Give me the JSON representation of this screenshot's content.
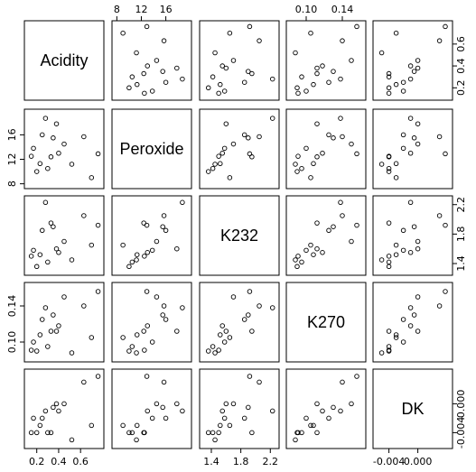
{
  "chart_data": {
    "type": "scatter",
    "subtype": "pairs-matrix",
    "title": "",
    "variables": [
      "Acidity",
      "Peroxide",
      "K232",
      "K270",
      "DK"
    ],
    "ranges": {
      "Acidity": [
        0.12,
        0.78
      ],
      "Peroxide": [
        7.8,
        19.6
      ],
      "K232": [
        1.29,
        2.27
      ],
      "K270": [
        0.082,
        0.162
      ],
      "DK": [
        -0.0057,
        0.0043
      ]
    },
    "ticks": {
      "Acidity": [
        0.2,
        0.4,
        0.6
      ],
      "Peroxide": [
        8,
        12,
        16
      ],
      "K232": [
        1.4,
        1.8,
        2.2
      ],
      "K270": [
        0.1,
        0.14
      ],
      "DK": [
        -0.004,
        0.0
      ]
    },
    "tick_labels": {
      "Acidity": [
        "0.2",
        "0.4",
        "0.6"
      ],
      "Peroxide": [
        "8",
        "12",
        "16"
      ],
      "K232": [
        "1.4",
        "1.8",
        "2.2"
      ],
      "K270": [
        "0.10",
        "0.14"
      ],
      "DK": [
        "-0.004",
        "0.000"
      ]
    },
    "axis_positions": {
      "top": [
        "Peroxide",
        "K270"
      ],
      "right": [
        "Acidity",
        "K232",
        "DK"
      ],
      "bottom": [
        "Acidity",
        "K232",
        "DK"
      ],
      "left": [
        "Peroxide",
        "K270"
      ]
    },
    "observations": [
      {
        "Acidity": 0.15,
        "Peroxide": 12.5,
        "K232": 1.5,
        "K270": 0.091,
        "DK": -0.004
      },
      {
        "Acidity": 0.17,
        "Peroxide": 13.8,
        "K232": 1.58,
        "K270": 0.1,
        "DK": -0.002
      },
      {
        "Acidity": 0.2,
        "Peroxide": 10.0,
        "K232": 1.36,
        "K270": 0.09,
        "DK": -0.004
      },
      {
        "Acidity": 0.23,
        "Peroxide": 11.3,
        "K232": 1.52,
        "K270": 0.108,
        "DK": -0.003
      },
      {
        "Acidity": 0.25,
        "Peroxide": 16.0,
        "K232": 1.85,
        "K270": 0.125,
        "DK": -0.002
      },
      {
        "Acidity": 0.28,
        "Peroxide": 18.7,
        "K232": 2.23,
        "K270": 0.138,
        "DK": -0.001
      },
      {
        "Acidity": 0.3,
        "Peroxide": 10.5,
        "K232": 1.42,
        "K270": 0.095,
        "DK": -0.004
      },
      {
        "Acidity": 0.33,
        "Peroxide": 12.4,
        "K232": 1.95,
        "K270": 0.112,
        "DK": -0.004
      },
      {
        "Acidity": 0.35,
        "Peroxide": 15.5,
        "K232": 1.9,
        "K270": 0.13,
        "DK": -0.0005
      },
      {
        "Acidity": 0.38,
        "Peroxide": 17.8,
        "K232": 1.6,
        "K270": 0.112,
        "DK": 0.0
      },
      {
        "Acidity": 0.4,
        "Peroxide": 13.0,
        "K232": 1.55,
        "K270": 0.118,
        "DK": -0.001
      },
      {
        "Acidity": 0.45,
        "Peroxide": 14.5,
        "K232": 1.7,
        "K270": 0.15,
        "DK": 0.0
      },
      {
        "Acidity": 0.52,
        "Peroxide": 11.2,
        "K232": 1.45,
        "K270": 0.088,
        "DK": -0.005
      },
      {
        "Acidity": 0.63,
        "Peroxide": 15.7,
        "K232": 2.05,
        "K270": 0.14,
        "DK": 0.003
      },
      {
        "Acidity": 0.7,
        "Peroxide": 9.0,
        "K232": 1.65,
        "K270": 0.105,
        "DK": -0.003
      },
      {
        "Acidity": 0.76,
        "Peroxide": 12.9,
        "K232": 1.92,
        "K270": 0.156,
        "DK": 0.0038
      }
    ],
    "grid": false,
    "legend": "none"
  }
}
